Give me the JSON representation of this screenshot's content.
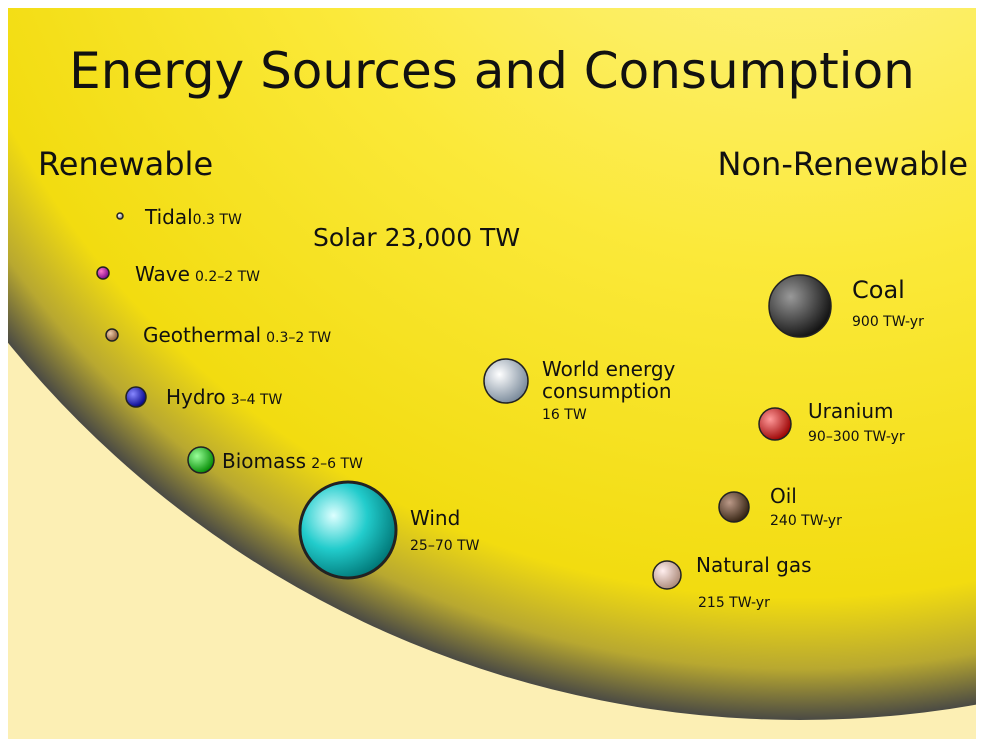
{
  "header": {
    "title": "Energy Sources and Consumption"
  },
  "renewable": {
    "heading": "Renewable",
    "solar": {
      "name": "Solar",
      "amount": "23,000 TW"
    },
    "items": [
      {
        "name": "Tidal",
        "amount": "0.3 TW"
      },
      {
        "name": "Wave",
        "amount": "0.2–2 TW"
      },
      {
        "name": "Geothermal",
        "amount": "0.3–2 TW"
      },
      {
        "name": "Hydro",
        "amount": "3–4 TW"
      },
      {
        "name": "Biomass",
        "amount": "2–6 TW"
      },
      {
        "name": "Wind",
        "amount": "25–70 TW"
      }
    ]
  },
  "consumption": {
    "name": "World energy consumption",
    "amount": "16 TW"
  },
  "non_renewable": {
    "heading": "Non-Renewable",
    "items": [
      {
        "name": "Coal",
        "amount": "900 TW-yr"
      },
      {
        "name": "Uranium",
        "amount": "90–300 TW-yr"
      },
      {
        "name": "Oil",
        "amount": "240 TW-yr"
      },
      {
        "name": "Natural gas",
        "amount": "215 TW-yr"
      }
    ]
  }
}
